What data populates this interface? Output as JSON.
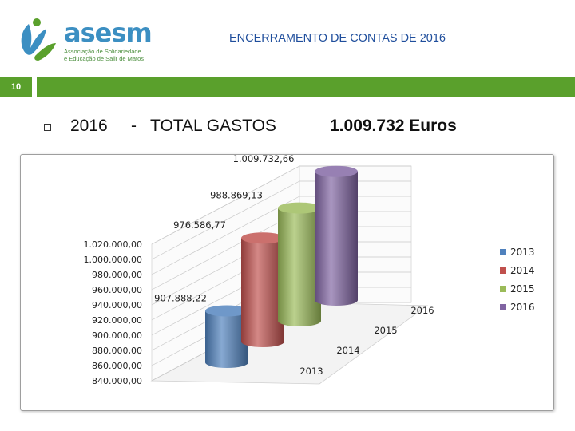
{
  "header": {
    "logo_name": "asesm",
    "logo_line1": "Associação de Solidariedade",
    "logo_line2": "e Educação de Salir de Matos",
    "title": "ENCERRAMENTO DE CONTAS DE 2016",
    "slide_number": "10"
  },
  "headline": {
    "year": "2016",
    "separator": "-",
    "label": "TOTAL GASTOS",
    "amount": "1.009.732 Euros"
  },
  "colors": {
    "accent_green": "#5aa02c",
    "title_blue": "#1f4e9c"
  },
  "chart_data": {
    "type": "bar",
    "style": "3d-cylinder",
    "categories": [
      "2013",
      "2014",
      "2015",
      "2016"
    ],
    "values": [
      907888.22,
      976586.77,
      988869.13,
      1009732.66
    ],
    "data_labels": [
      "907.888,22",
      "976.586,77",
      "988.869,13",
      "1.009.732,66"
    ],
    "colors": [
      "#4f81bd",
      "#c0504d",
      "#9bbb59",
      "#8064a2"
    ],
    "ylim": [
      840000,
      1020000
    ],
    "yticks": [
      "1.020.000,00",
      "1.000.000,00",
      "980.000,00",
      "960.000,00",
      "940.000,00",
      "920.000,00",
      "900.000,00",
      "880.000,00",
      "860.000,00",
      "840.000,00"
    ],
    "legend": [
      "2013",
      "2014",
      "2015",
      "2016"
    ],
    "legend_position": "right",
    "grid": true,
    "title": "",
    "xlabel": "",
    "ylabel": ""
  }
}
